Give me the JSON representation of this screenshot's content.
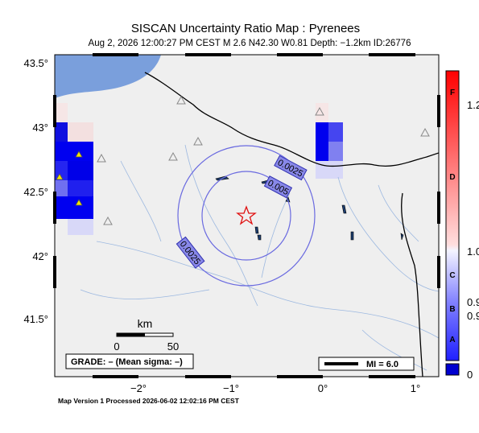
{
  "header": {
    "title": "SISCAN Uncertainty Ratio Map : Pyrenees",
    "subtitle": "Aug  2, 2026 12:00:27 PM CEST   M 2.6   N42.30 W0.81   Depth: −1.2km   ID:26776"
  },
  "axes": {
    "lat_labels": [
      "43.5°",
      "43°",
      "42.5°",
      "42°",
      "41.5°"
    ],
    "lon_labels": [
      "−2°",
      "−1°",
      "0°",
      "1°"
    ]
  },
  "contour_labels": [
    "0.0025",
    "0.005",
    "0.0025"
  ],
  "scale_bar": {
    "unit": "km",
    "start": "0",
    "end": "50"
  },
  "grade": "GRADE: – (Mean sigma: –)",
  "magnitude_legend": "MI = 6.0",
  "footer": "Map Version 1 Processed 2026-06-02 12:02:16 PM CEST",
  "colorbar": {
    "grades": [
      "F",
      "D",
      "C",
      "B",
      "A"
    ],
    "labels": [
      "1.2",
      "1.0",
      "0.9",
      "0.9",
      "0"
    ]
  }
}
